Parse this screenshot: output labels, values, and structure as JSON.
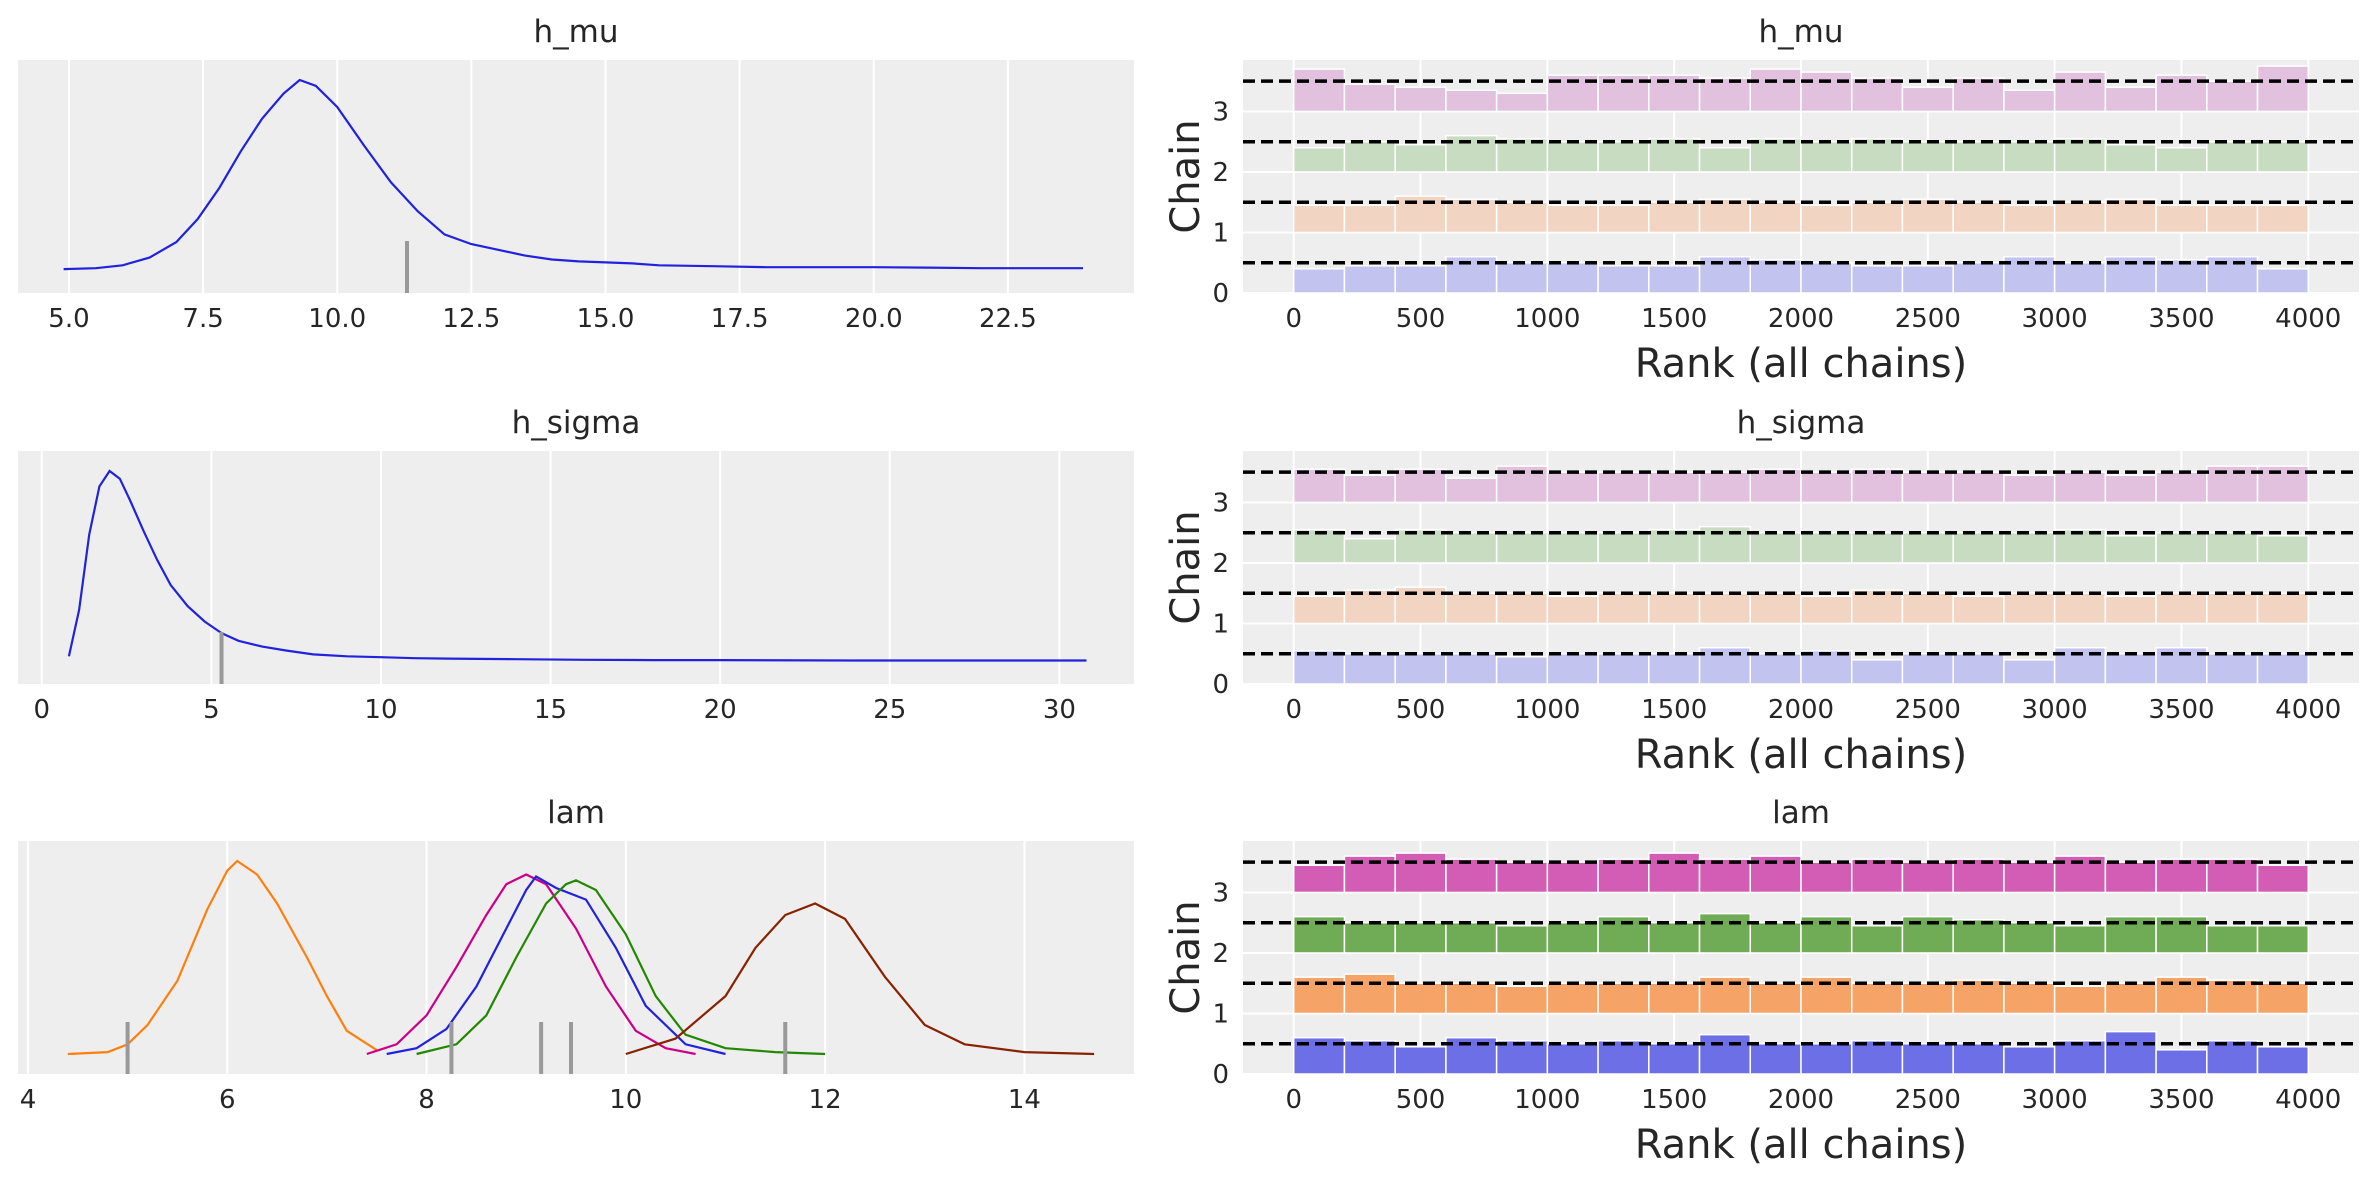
{
  "chart_data": [
    {
      "type": "line",
      "title": "h_mu",
      "xlim": [
        4.05,
        24.85
      ],
      "xticks": [
        5.0,
        7.5,
        10.0,
        12.5,
        15.0,
        17.5,
        20.0,
        22.5
      ],
      "tick_labels": [
        "5.0",
        "7.5",
        "10.0",
        "12.5",
        "15.0",
        "17.5",
        "20.0",
        "22.5"
      ],
      "grid": true,
      "series": [
        {
          "color": "#2222dd",
          "x": [
            4.9,
            5.5,
            6.0,
            6.5,
            7.0,
            7.4,
            7.8,
            8.2,
            8.6,
            9.0,
            9.3,
            9.6,
            10.0,
            10.5,
            11.0,
            11.5,
            12.0,
            12.5,
            13.0,
            13.5,
            14.0,
            14.5,
            15.0,
            15.5,
            16.0,
            17.0,
            18.0,
            19.0,
            20.0,
            21.0,
            22.0,
            23.0,
            23.9
          ],
          "y": [
            0.02,
            0.025,
            0.04,
            0.08,
            0.16,
            0.28,
            0.44,
            0.63,
            0.8,
            0.93,
            1.0,
            0.97,
            0.86,
            0.66,
            0.47,
            0.32,
            0.2,
            0.15,
            0.12,
            0.09,
            0.07,
            0.06,
            0.055,
            0.05,
            0.04,
            0.035,
            0.03,
            0.03,
            0.03,
            0.028,
            0.025,
            0.025,
            0.025
          ]
        }
      ],
      "markers": [
        11.3
      ]
    },
    {
      "type": "line",
      "title": "h_sigma",
      "xlim": [
        -0.7,
        32.2
      ],
      "xticks": [
        0,
        5,
        10,
        15,
        20,
        25,
        30
      ],
      "tick_labels": [
        "0",
        "5",
        "10",
        "15",
        "20",
        "25",
        "30"
      ],
      "grid": true,
      "series": [
        {
          "color": "#2222dd",
          "x": [
            0.8,
            1.1,
            1.4,
            1.7,
            2.0,
            2.3,
            2.6,
            3.0,
            3.4,
            3.8,
            4.3,
            4.8,
            5.3,
            5.8,
            6.5,
            7.2,
            8.0,
            9.0,
            10.0,
            11.0,
            12.0,
            14.0,
            16.0,
            18.0,
            20.0,
            24.0,
            28.0,
            30.8
          ],
          "y": [
            0.04,
            0.28,
            0.67,
            0.92,
            1.0,
            0.96,
            0.85,
            0.69,
            0.54,
            0.41,
            0.3,
            0.22,
            0.16,
            0.12,
            0.09,
            0.07,
            0.05,
            0.04,
            0.035,
            0.03,
            0.028,
            0.025,
            0.022,
            0.02,
            0.02,
            0.018,
            0.018,
            0.018
          ]
        }
      ],
      "markers": [
        5.3
      ]
    },
    {
      "type": "line",
      "title": "lam",
      "xlim": [
        3.9,
        15.1
      ],
      "xticks": [
        4,
        6,
        8,
        10,
        12,
        14
      ],
      "tick_labels": [
        "4",
        "6",
        "8",
        "10",
        "12",
        "14"
      ],
      "grid": true,
      "series": [
        {
          "color": "#ff7f0e",
          "x": [
            4.4,
            4.8,
            5.0,
            5.2,
            5.5,
            5.8,
            6.0,
            6.1,
            6.3,
            6.5,
            6.8,
            7.0,
            7.2,
            7.5
          ],
          "y": [
            0.0,
            0.01,
            0.05,
            0.15,
            0.38,
            0.75,
            0.95,
            1.0,
            0.93,
            0.78,
            0.5,
            0.3,
            0.12,
            0.02
          ]
        },
        {
          "color": "#cc0088",
          "x": [
            7.4,
            7.7,
            8.0,
            8.3,
            8.6,
            8.8,
            9.0,
            9.2,
            9.5,
            9.8,
            10.1,
            10.4,
            10.7
          ],
          "y": [
            0.0,
            0.05,
            0.2,
            0.45,
            0.72,
            0.88,
            0.93,
            0.88,
            0.65,
            0.35,
            0.12,
            0.03,
            0.0
          ]
        },
        {
          "color": "#2222dd",
          "x": [
            7.6,
            7.9,
            8.2,
            8.5,
            8.8,
            9.0,
            9.1,
            9.3,
            9.6,
            9.9,
            10.2,
            10.6,
            11.0
          ],
          "y": [
            0.0,
            0.03,
            0.13,
            0.35,
            0.65,
            0.85,
            0.92,
            0.86,
            0.8,
            0.55,
            0.25,
            0.05,
            0.0
          ]
        },
        {
          "color": "#228800",
          "x": [
            7.9,
            8.3,
            8.6,
            8.9,
            9.2,
            9.4,
            9.5,
            9.7,
            10.0,
            10.3,
            10.6,
            11.0,
            11.5,
            12.0
          ],
          "y": [
            0.0,
            0.05,
            0.2,
            0.5,
            0.78,
            0.88,
            0.9,
            0.85,
            0.62,
            0.3,
            0.1,
            0.03,
            0.01,
            0.0
          ]
        },
        {
          "color": "#882200",
          "x": [
            10.0,
            10.5,
            11.0,
            11.3,
            11.6,
            11.9,
            12.2,
            12.6,
            13.0,
            13.4,
            14.0,
            14.7
          ],
          "y": [
            0.0,
            0.08,
            0.3,
            0.55,
            0.72,
            0.78,
            0.7,
            0.4,
            0.15,
            0.05,
            0.01,
            0.0
          ]
        }
      ],
      "markers": [
        5.0,
        8.25,
        9.15,
        9.45,
        11.6
      ]
    },
    {
      "type": "bar",
      "title": "h_mu",
      "xlabel": "Rank (all chains)",
      "ylabel": "Chain",
      "xlim": [
        -200,
        4200
      ],
      "ylim": [
        0,
        3.85
      ],
      "xticks": [
        0,
        500,
        1000,
        1500,
        2000,
        2500,
        3000,
        3500,
        4000
      ],
      "tick_labels": [
        "0",
        "500",
        "1000",
        "1500",
        "2000",
        "2500",
        "3000",
        "3500",
        "4000"
      ],
      "yticks": [
        0,
        1,
        2,
        3
      ],
      "ytick_labels": [
        "0",
        "1",
        "2",
        "3"
      ],
      "bin_edges": [
        0,
        200,
        400,
        600,
        800,
        1000,
        1200,
        1400,
        1600,
        1800,
        2000,
        2200,
        2400,
        2600,
        2800,
        3000,
        3200,
        3400,
        3600,
        3800,
        4000
      ],
      "reference_lines": [
        0.5,
        1.5,
        2.5,
        3.5
      ],
      "series": [
        {
          "name": "0",
          "color": "#c2c3ee",
          "values": [
            0.4,
            0.45,
            0.45,
            0.6,
            0.5,
            0.5,
            0.45,
            0.45,
            0.6,
            0.55,
            0.5,
            0.45,
            0.45,
            0.5,
            0.6,
            0.5,
            0.6,
            0.55,
            0.6,
            0.4
          ]
        },
        {
          "name": "1",
          "color": "#f2d4c3",
          "values": [
            0.45,
            0.45,
            0.6,
            0.55,
            0.5,
            0.45,
            0.45,
            0.5,
            0.55,
            0.5,
            0.45,
            0.5,
            0.55,
            0.5,
            0.45,
            0.5,
            0.55,
            0.45,
            0.45,
            0.45
          ]
        },
        {
          "name": "2",
          "color": "#c7dcc0",
          "values": [
            0.4,
            0.5,
            0.45,
            0.6,
            0.55,
            0.5,
            0.5,
            0.55,
            0.4,
            0.55,
            0.5,
            0.55,
            0.5,
            0.5,
            0.5,
            0.55,
            0.45,
            0.4,
            0.5,
            0.5
          ]
        },
        {
          "name": "3",
          "color": "#e1c1dd",
          "values": [
            0.7,
            0.45,
            0.4,
            0.35,
            0.3,
            0.6,
            0.6,
            0.6,
            0.55,
            0.7,
            0.65,
            0.55,
            0.4,
            0.55,
            0.35,
            0.65,
            0.4,
            0.6,
            0.5,
            0.75
          ]
        }
      ]
    },
    {
      "type": "bar",
      "title": "h_sigma",
      "xlabel": "Rank (all chains)",
      "ylabel": "Chain",
      "xlim": [
        -200,
        4200
      ],
      "ylim": [
        0,
        3.85
      ],
      "xticks": [
        0,
        500,
        1000,
        1500,
        2000,
        2500,
        3000,
        3500,
        4000
      ],
      "tick_labels": [
        "0",
        "500",
        "1000",
        "1500",
        "2000",
        "2500",
        "3000",
        "3500",
        "4000"
      ],
      "yticks": [
        0,
        1,
        2,
        3
      ],
      "ytick_labels": [
        "0",
        "1",
        "2",
        "3"
      ],
      "bin_edges": [
        0,
        200,
        400,
        600,
        800,
        1000,
        1200,
        1400,
        1600,
        1800,
        2000,
        2200,
        2400,
        2600,
        2800,
        3000,
        3200,
        3400,
        3600,
        3800,
        4000
      ],
      "reference_lines": [
        0.5,
        1.5,
        2.5,
        3.5
      ],
      "series": [
        {
          "name": "0",
          "color": "#c2c3ee",
          "values": [
            0.55,
            0.5,
            0.5,
            0.5,
            0.45,
            0.5,
            0.5,
            0.5,
            0.6,
            0.5,
            0.55,
            0.4,
            0.5,
            0.5,
            0.4,
            0.6,
            0.5,
            0.6,
            0.5,
            0.5
          ]
        },
        {
          "name": "1",
          "color": "#f2d4c3",
          "values": [
            0.45,
            0.55,
            0.6,
            0.5,
            0.5,
            0.45,
            0.5,
            0.5,
            0.5,
            0.5,
            0.45,
            0.55,
            0.5,
            0.45,
            0.5,
            0.5,
            0.45,
            0.5,
            0.5,
            0.5
          ]
        },
        {
          "name": "2",
          "color": "#c7dcc0",
          "values": [
            0.55,
            0.4,
            0.55,
            0.5,
            0.5,
            0.5,
            0.5,
            0.55,
            0.6,
            0.5,
            0.5,
            0.5,
            0.5,
            0.5,
            0.5,
            0.55,
            0.45,
            0.5,
            0.5,
            0.45
          ]
        },
        {
          "name": "3",
          "color": "#e1c1dd",
          "values": [
            0.55,
            0.45,
            0.55,
            0.4,
            0.6,
            0.5,
            0.5,
            0.5,
            0.5,
            0.55,
            0.5,
            0.55,
            0.5,
            0.5,
            0.45,
            0.5,
            0.45,
            0.5,
            0.6,
            0.6
          ]
        }
      ]
    },
    {
      "type": "bar",
      "title": "lam",
      "xlabel": "Rank (all chains)",
      "ylabel": "Chain",
      "xlim": [
        -200,
        4200
      ],
      "ylim": [
        0,
        3.85
      ],
      "xticks": [
        0,
        500,
        1000,
        1500,
        2000,
        2500,
        3000,
        3500,
        4000
      ],
      "tick_labels": [
        "0",
        "500",
        "1000",
        "1500",
        "2000",
        "2500",
        "3000",
        "3500",
        "4000"
      ],
      "yticks": [
        0,
        1,
        2,
        3
      ],
      "ytick_labels": [
        "0",
        "1",
        "2",
        "3"
      ],
      "bin_edges": [
        0,
        200,
        400,
        600,
        800,
        1000,
        1200,
        1400,
        1600,
        1800,
        2000,
        2200,
        2400,
        2600,
        2800,
        3000,
        3200,
        3400,
        3600,
        3800,
        4000
      ],
      "reference_lines": [
        0.5,
        1.5,
        2.5,
        3.5
      ],
      "series": [
        {
          "name": "0",
          "color": "#6d6fe6",
          "values": [
            0.6,
            0.55,
            0.45,
            0.6,
            0.55,
            0.5,
            0.55,
            0.5,
            0.65,
            0.5,
            0.5,
            0.55,
            0.5,
            0.5,
            0.45,
            0.55,
            0.7,
            0.4,
            0.55,
            0.45
          ]
        },
        {
          "name": "1",
          "color": "#f5a367",
          "values": [
            0.6,
            0.65,
            0.5,
            0.5,
            0.45,
            0.5,
            0.5,
            0.5,
            0.6,
            0.5,
            0.6,
            0.5,
            0.5,
            0.55,
            0.5,
            0.45,
            0.5,
            0.6,
            0.55,
            0.5
          ]
        },
        {
          "name": "2",
          "color": "#6fac55",
          "values": [
            0.6,
            0.5,
            0.5,
            0.5,
            0.45,
            0.5,
            0.6,
            0.5,
            0.65,
            0.5,
            0.6,
            0.45,
            0.6,
            0.55,
            0.5,
            0.45,
            0.6,
            0.6,
            0.45,
            0.45
          ]
        },
        {
          "name": "3",
          "color": "#d35cb5",
          "values": [
            0.45,
            0.6,
            0.65,
            0.55,
            0.5,
            0.5,
            0.55,
            0.65,
            0.55,
            0.6,
            0.5,
            0.55,
            0.5,
            0.55,
            0.5,
            0.6,
            0.5,
            0.55,
            0.55,
            0.45
          ]
        }
      ]
    }
  ]
}
